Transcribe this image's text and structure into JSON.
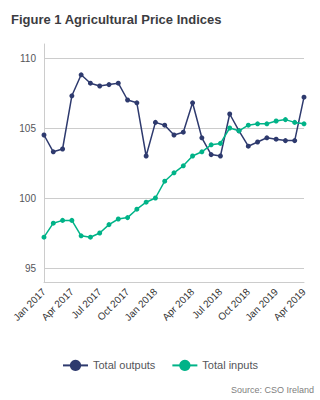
{
  "chart_data": {
    "type": "line",
    "title": "Figure 1 Agricultural Price Indices",
    "annotations": [
      "Source: CSO Ireland"
    ],
    "categories": [
      "Jan 2017",
      null,
      null,
      "Apr 2017",
      null,
      null,
      "Jul 2017",
      null,
      null,
      "Oct 2017",
      null,
      null,
      "Jan 2018",
      null,
      null,
      null,
      "Apr 2018",
      null,
      null,
      "Jul 2018",
      null,
      null,
      "Oct 2018",
      null,
      null,
      "Jan 2019",
      null,
      null,
      "Apr 2019"
    ],
    "series": [
      {
        "name": "Total outputs",
        "color": "#2E3A6E",
        "marker": "circle",
        "values": [
          104.5,
          103.3,
          103.5,
          107.3,
          108.8,
          108.2,
          108.0,
          108.1,
          108.2,
          107.0,
          106.8,
          103.0,
          105.4,
          105.2,
          104.5,
          104.7,
          106.8,
          104.3,
          103.1,
          103.0,
          106.0,
          104.8,
          103.7,
          104.0,
          104.3,
          104.2,
          104.1,
          104.1,
          107.2
        ]
      },
      {
        "name": "Total inputs",
        "color": "#00B388",
        "marker": "circle",
        "values": [
          97.2,
          98.2,
          98.4,
          98.4,
          97.3,
          97.2,
          97.5,
          98.1,
          98.5,
          98.6,
          99.2,
          99.7,
          100.0,
          101.2,
          101.8,
          102.3,
          103.0,
          103.3,
          103.8,
          103.9,
          105.0,
          104.8,
          105.2,
          105.3,
          105.3,
          105.5,
          105.6,
          105.4,
          105.3
        ]
      }
    ],
    "ylim": [
      94,
      111
    ],
    "yticks": [
      95,
      100,
      105,
      110
    ],
    "grid": true,
    "legend": "bottom"
  }
}
